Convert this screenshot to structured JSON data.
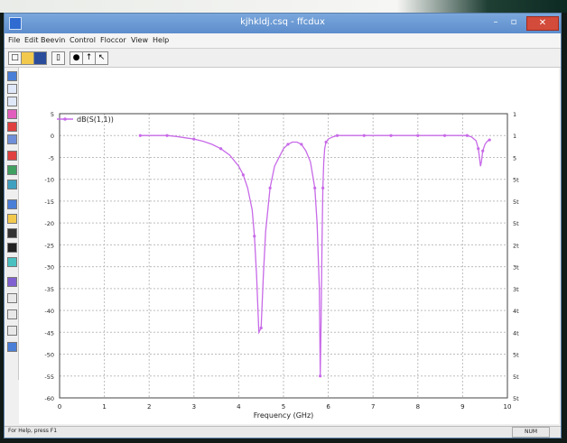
{
  "window": {
    "title": "kjhkldj.csq - ffcdux",
    "min_glyph": "–",
    "max_glyph": "▫",
    "close_glyph": "✕",
    "accent": "#5d8dcc"
  },
  "menu": [
    "File",
    "Edit",
    "Beevin",
    "Control",
    "Floccor",
    "View",
    "Help"
  ],
  "toolbar_icons": [
    "new-file-icon",
    "open-folder-icon",
    "save-icon",
    "copy-icon",
    "print-icon",
    "arrow-up-icon",
    "cursor-icon"
  ],
  "sidebar_icons": [
    "select-icon",
    "zoom-in-icon",
    "zoom-out-icon",
    "pan-icon",
    "marker-icon",
    "layers-icon",
    "line-tool-icon",
    "measure-icon",
    "table-icon",
    "plot-icon",
    "edit-icon",
    "color-icon",
    "save-plot-icon",
    "export-icon",
    "grid-icon",
    "undo-icon",
    "redo-icon",
    "settings-icon",
    "help-icon"
  ],
  "status": {
    "left": "For Help, press F1",
    "right": "NUM"
  },
  "chart_data": {
    "type": "line",
    "legend": "dB(S(1,1))",
    "xlabel": "Frequency (GHz)",
    "ylabel": "",
    "xlim": [
      0,
      10
    ],
    "ylim": [
      -60,
      5
    ],
    "x_ticks": [
      "0",
      "1",
      "2",
      "3",
      "4",
      "5",
      "6",
      "7",
      "8",
      "9",
      "10"
    ],
    "y_ticks_left": [
      "5",
      "0",
      "-5",
      "-10",
      "-15",
      "-20",
      "-25",
      "-30",
      "-35",
      "-40",
      "-45",
      "-50",
      "-55",
      "-60"
    ],
    "y_ticks_right": [
      "1",
      "1",
      "5",
      "5t",
      "5t",
      "5t",
      "2t",
      "3t",
      "3t",
      "4t",
      "4t",
      "5t",
      "5t",
      "5t"
    ],
    "series": [
      {
        "name": "dB(S(1,1))",
        "color": "#c86ae8",
        "x": [
          1.8,
          2.0,
          2.2,
          2.4,
          2.6,
          2.8,
          3.0,
          3.2,
          3.4,
          3.6,
          3.8,
          4.0,
          4.1,
          4.2,
          4.3,
          4.35,
          4.4,
          4.45,
          4.5,
          4.55,
          4.6,
          4.7,
          4.8,
          5.0,
          5.1,
          5.2,
          5.3,
          5.4,
          5.5,
          5.6,
          5.7,
          5.75,
          5.8,
          5.82,
          5.84,
          5.86,
          5.88,
          5.9,
          5.92,
          5.95,
          6.0,
          6.1,
          6.2,
          6.4,
          6.6,
          6.8,
          7.0,
          7.2,
          7.4,
          7.6,
          7.8,
          8.0,
          8.2,
          8.4,
          8.6,
          8.8,
          9.0,
          9.1,
          9.2,
          9.3,
          9.35,
          9.4,
          9.42,
          9.45,
          9.5,
          9.55,
          9.6
        ],
        "y": [
          0,
          0,
          0,
          0,
          -0.2,
          -0.5,
          -0.8,
          -1.3,
          -2,
          -3,
          -4.5,
          -7,
          -9,
          -12,
          -17,
          -23,
          -32,
          -45,
          -44,
          -32,
          -22,
          -12,
          -7,
          -3,
          -2,
          -1.5,
          -1.5,
          -2,
          -3.5,
          -6,
          -12,
          -20,
          -35,
          -55,
          -42,
          -24,
          -12,
          -6,
          -3,
          -1.5,
          -0.8,
          -0.3,
          0,
          0,
          0,
          0,
          0,
          0,
          0,
          0,
          0,
          0,
          0,
          0,
          0,
          0,
          0,
          0,
          -0.3,
          -1.2,
          -3,
          -7,
          -6,
          -3.5,
          -2,
          -1.3,
          -1
        ]
      }
    ],
    "grid": true,
    "legend_position": "top-left"
  }
}
